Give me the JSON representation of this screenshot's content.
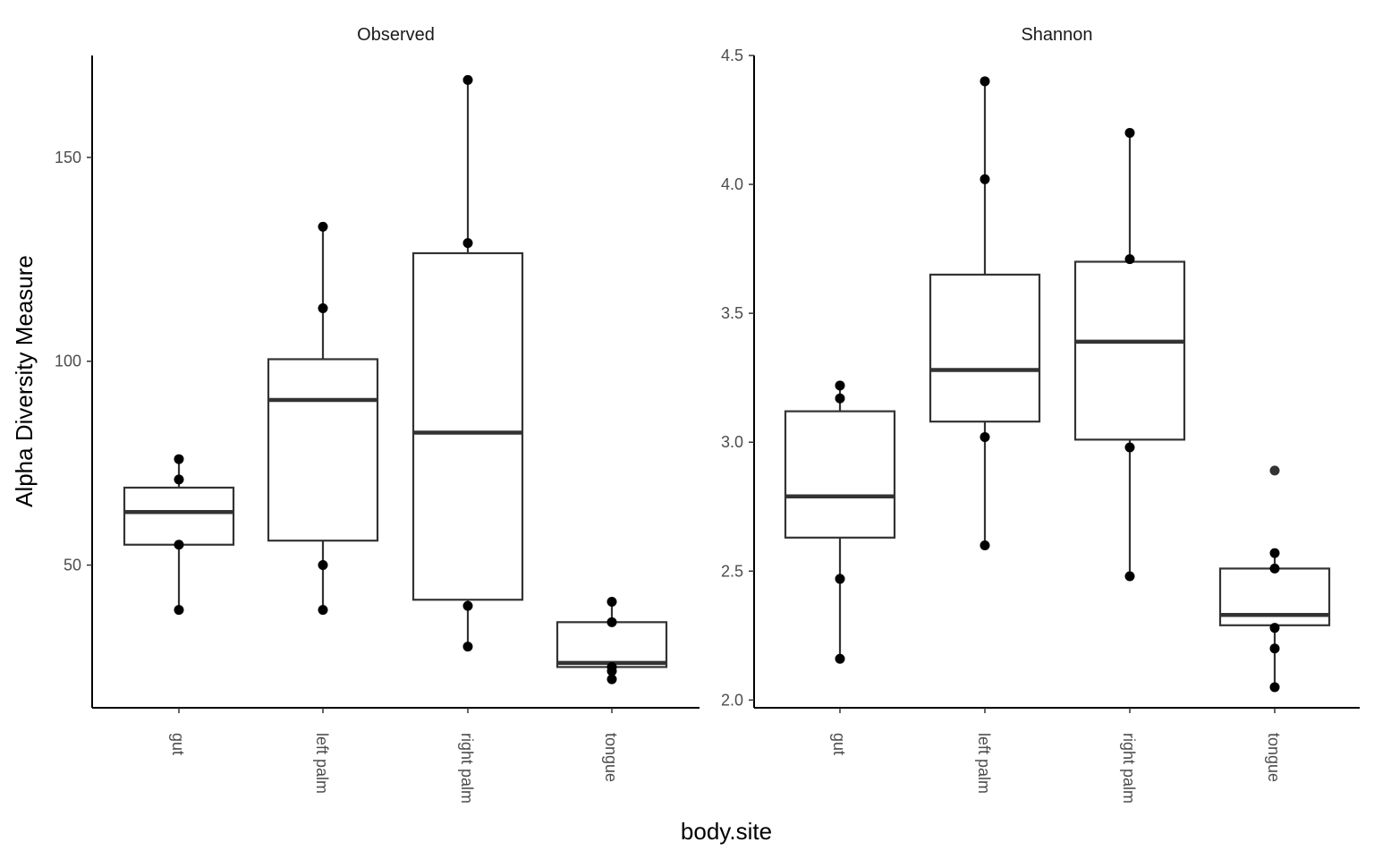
{
  "chart_data": {
    "type": "box",
    "xlabel": "body.site",
    "ylabel": "Alpha Diversity Measure",
    "categories": [
      "gut",
      "left palm",
      "right palm",
      "tongue"
    ],
    "grid": false,
    "legend": "none",
    "colors": {
      "box_line": "#333333",
      "point": "#000000",
      "outlier": "#333333",
      "axis": "#000000"
    },
    "panels": [
      {
        "title": "Observed",
        "ylim": [
          15,
          175
        ],
        "yticks": [
          50,
          100,
          150
        ],
        "boxes": [
          {
            "category": "gut",
            "lower_whisker": 39,
            "q1": 55,
            "median": 63,
            "q3": 69,
            "upper_whisker": 76,
            "points": [
              76,
              71,
              55,
              39
            ],
            "outliers": []
          },
          {
            "category": "left palm",
            "lower_whisker": 39,
            "q1": 56,
            "median": 90.5,
            "q3": 100.5,
            "upper_whisker": 133,
            "points": [
              133,
              113,
              50,
              39
            ],
            "outliers": []
          },
          {
            "category": "right palm",
            "lower_whisker": 30,
            "q1": 41.5,
            "median": 82.5,
            "q3": 126.5,
            "upper_whisker": 169,
            "points": [
              169,
              129,
              40,
              30
            ],
            "outliers": []
          },
          {
            "category": "tongue",
            "lower_whisker": 22,
            "q1": 25,
            "median": 26,
            "q3": 36,
            "upper_whisker": 41,
            "points": [
              41,
              36,
              25,
              24,
              22
            ],
            "outliers": []
          }
        ]
      },
      {
        "title": "Shannon",
        "ylim": [
          1.97,
          4.5
        ],
        "yticks": [
          2.0,
          2.5,
          3.0,
          3.5,
          4.0,
          4.5
        ],
        "boxes": [
          {
            "category": "gut",
            "lower_whisker": 2.16,
            "q1": 2.63,
            "median": 2.79,
            "q3": 3.12,
            "upper_whisker": 3.22,
            "points": [
              3.22,
              3.17,
              2.47,
              2.16
            ],
            "outliers": []
          },
          {
            "category": "left palm",
            "lower_whisker": 2.6,
            "q1": 3.08,
            "median": 3.28,
            "q3": 3.65,
            "upper_whisker": 4.4,
            "points": [
              4.4,
              4.02,
              3.02,
              2.6
            ],
            "outliers": []
          },
          {
            "category": "right palm",
            "lower_whisker": 2.48,
            "q1": 3.01,
            "median": 3.39,
            "q3": 3.7,
            "upper_whisker": 4.2,
            "points": [
              4.2,
              3.71,
              2.98,
              2.48
            ],
            "outliers": []
          },
          {
            "category": "tongue",
            "lower_whisker": 2.05,
            "q1": 2.29,
            "median": 2.33,
            "q3": 2.51,
            "upper_whisker": 2.57,
            "points": [
              2.57,
              2.51,
              2.28,
              2.2,
              2.05
            ],
            "outliers": [
              2.89
            ]
          }
        ]
      }
    ]
  }
}
